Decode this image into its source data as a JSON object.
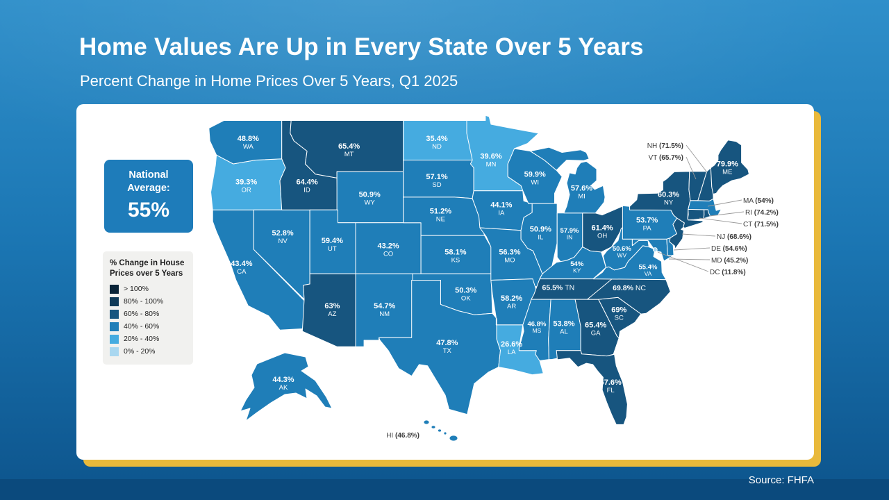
{
  "header": {
    "title": "Home Values Are Up in Every State Over 5 Years",
    "subtitle": "Percent Change in Home Prices Over 5 Years, Q1 2025"
  },
  "footer": {
    "source": "Source: FHFA"
  },
  "national_average": {
    "label": "National Average:",
    "value": "55%"
  },
  "legend": {
    "title": "% Change in House Prices over 5 Years"
  },
  "colors": {
    "background_top": "#2f8fca",
    "background_bottom": "#0d548c",
    "footer_band": "#0b4a7d",
    "card_shadow_gold": "#e9b93b",
    "national_average_bg": "#1e7cba",
    "state_border": "#ffffff"
  },
  "chart_data": {
    "type": "heatmap",
    "map_form": "us-state-choropleth",
    "title": "Percent Change in Home Prices Over 5 Years, Q1 2025",
    "unit": "%",
    "national_average_pct": 55,
    "legend_bins": [
      {
        "label": "> 100%",
        "range": [
          100,
          null
        ],
        "color": "#0a2438"
      },
      {
        "label": "80% - 100%",
        "range": [
          80,
          100
        ],
        "color": "#0f3a58"
      },
      {
        "label": "60% - 80%",
        "range": [
          60,
          80
        ],
        "color": "#17557f"
      },
      {
        "label": "40% - 60%",
        "range": [
          40,
          60
        ],
        "color": "#1f7eb8"
      },
      {
        "label": "20% - 40%",
        "range": [
          20,
          40
        ],
        "color": "#45abe0"
      },
      {
        "label": "0% - 20%",
        "range": [
          0,
          20
        ],
        "color": "#a9d7f0"
      }
    ],
    "states": [
      {
        "abbr": "WA",
        "value": 48.8,
        "display": "48.8%"
      },
      {
        "abbr": "OR",
        "value": 39.3,
        "display": "39.3%"
      },
      {
        "abbr": "CA",
        "value": 43.4,
        "display": "43.4%"
      },
      {
        "abbr": "NV",
        "value": 52.8,
        "display": "52.8%"
      },
      {
        "abbr": "ID",
        "value": 64.4,
        "display": "64.4%"
      },
      {
        "abbr": "MT",
        "value": 65.4,
        "display": "65.4%"
      },
      {
        "abbr": "WY",
        "value": 50.9,
        "display": "50.9%"
      },
      {
        "abbr": "UT",
        "value": 59.4,
        "display": "59.4%"
      },
      {
        "abbr": "CO",
        "value": 43.2,
        "display": "43.2%"
      },
      {
        "abbr": "AZ",
        "value": 63,
        "display": "63%"
      },
      {
        "abbr": "NM",
        "value": 54.7,
        "display": "54.7%"
      },
      {
        "abbr": "ND",
        "value": 35.4,
        "display": "35.4%"
      },
      {
        "abbr": "SD",
        "value": 57.1,
        "display": "57.1%"
      },
      {
        "abbr": "NE",
        "value": 51.2,
        "display": "51.2%"
      },
      {
        "abbr": "KS",
        "value": 58.1,
        "display": "58.1%"
      },
      {
        "abbr": "OK",
        "value": 50.3,
        "display": "50.3%"
      },
      {
        "abbr": "TX",
        "value": 47.8,
        "display": "47.8%"
      },
      {
        "abbr": "MN",
        "value": 39.6,
        "display": "39.6%"
      },
      {
        "abbr": "IA",
        "value": 44.1,
        "display": "44.1%"
      },
      {
        "abbr": "MO",
        "value": 56.3,
        "display": "56.3%"
      },
      {
        "abbr": "AR",
        "value": 58.2,
        "display": "58.2%"
      },
      {
        "abbr": "LA",
        "value": 26.6,
        "display": "26.6%"
      },
      {
        "abbr": "WI",
        "value": 59.9,
        "display": "59.9%"
      },
      {
        "abbr": "IL",
        "value": 50.9,
        "display": "50.9%"
      },
      {
        "abbr": "IN",
        "value": 57.9,
        "display": "57.9%"
      },
      {
        "abbr": "MI",
        "value": 57.6,
        "display": "57.6%"
      },
      {
        "abbr": "OH",
        "value": 61.4,
        "display": "61.4%"
      },
      {
        "abbr": "KY",
        "value": 54,
        "display": "54%"
      },
      {
        "abbr": "TN",
        "value": 65.5,
        "display": "65.5%"
      },
      {
        "abbr": "MS",
        "value": 46.8,
        "display": "46.8%"
      },
      {
        "abbr": "AL",
        "value": 53.8,
        "display": "53.8%"
      },
      {
        "abbr": "GA",
        "value": 65.4,
        "display": "65.4%"
      },
      {
        "abbr": "FL",
        "value": 67.6,
        "display": "67.6%"
      },
      {
        "abbr": "SC",
        "value": 69,
        "display": "69%"
      },
      {
        "abbr": "NC",
        "value": 69.8,
        "display": "69.8%"
      },
      {
        "abbr": "VA",
        "value": 55.4,
        "display": "55.4%"
      },
      {
        "abbr": "WV",
        "value": 50.6,
        "display": "50.6%"
      },
      {
        "abbr": "PA",
        "value": 53.7,
        "display": "53.7%"
      },
      {
        "abbr": "NY",
        "value": 60.3,
        "display": "60.3%"
      },
      {
        "abbr": "NJ",
        "value": 68.6,
        "display": "68.6%"
      },
      {
        "abbr": "DE",
        "value": 54.6,
        "display": "54.6%"
      },
      {
        "abbr": "MD",
        "value": 45.2,
        "display": "45.2%"
      },
      {
        "abbr": "CT",
        "value": 71.5,
        "display": "71.5%"
      },
      {
        "abbr": "RI",
        "value": 74.2,
        "display": "74.2%"
      },
      {
        "abbr": "MA",
        "value": 54,
        "display": "54%"
      },
      {
        "abbr": "VT",
        "value": 65.7,
        "display": "65.7%"
      },
      {
        "abbr": "NH",
        "value": 71.5,
        "display": "71.5%"
      },
      {
        "abbr": "ME",
        "value": 79.9,
        "display": "79.9%"
      },
      {
        "abbr": "AK",
        "value": 44.3,
        "display": "44.3%"
      },
      {
        "abbr": "HI",
        "value": 46.8,
        "display": "46.8%"
      },
      {
        "abbr": "DC",
        "value": 11.8,
        "display": "11.8%"
      }
    ]
  }
}
